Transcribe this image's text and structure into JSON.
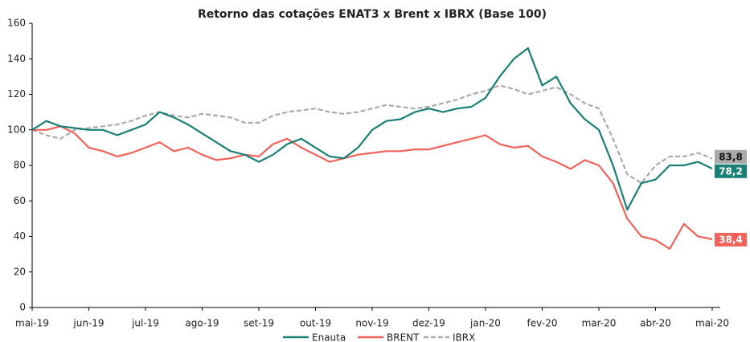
{
  "chart_data": {
    "type": "line",
    "title": "Retorno das cotações ENAT3 x Brent x IBRX (Base 100)",
    "categories": [
      "mai-19",
      null,
      null,
      null,
      "jun-19",
      null,
      null,
      null,
      "jul-19",
      null,
      null,
      null,
      "ago-19",
      null,
      null,
      null,
      "set-19",
      null,
      null,
      null,
      "out-19",
      null,
      null,
      null,
      "nov-19",
      null,
      null,
      null,
      "dez-19",
      null,
      null,
      null,
      "jan-20",
      null,
      null,
      null,
      "fev-20",
      null,
      null,
      null,
      "mar-20",
      null,
      null,
      null,
      "abr-20",
      null,
      null,
      null,
      "mai-20"
    ],
    "ylim": [
      0,
      160
    ],
    "yticks": [
      0,
      20,
      40,
      60,
      80,
      100,
      120,
      140,
      160
    ],
    "grid": false,
    "legend": "bottom",
    "series": [
      {
        "name": "Enauta",
        "color": "#1a7f74",
        "dash": false,
        "values": [
          100,
          105,
          102,
          101,
          100,
          100,
          97,
          100,
          103,
          110,
          107,
          103,
          98,
          93,
          88,
          86,
          82,
          86,
          92,
          95,
          90,
          85,
          84,
          90,
          100,
          105,
          106,
          110,
          112,
          110,
          112,
          113,
          118,
          130,
          140,
          146,
          125,
          130,
          115,
          106,
          100,
          80,
          55,
          70,
          72,
          80,
          80,
          82,
          78.2
        ],
        "value_labels": [
          null,
          null,
          null,
          null,
          null,
          null,
          null,
          null,
          null,
          null,
          null,
          null,
          null,
          null,
          null,
          null,
          null,
          null,
          null,
          null,
          null,
          null,
          null,
          null,
          null,
          null,
          null,
          null,
          null,
          null,
          null,
          null,
          null,
          null,
          null,
          null,
          null,
          null,
          null,
          null,
          null,
          null,
          null,
          null,
          null,
          null,
          null,
          null,
          "78,2"
        ]
      },
      {
        "name": "BRENT",
        "color": "#f0625a",
        "dash": false,
        "values": [
          100,
          100,
          102,
          98,
          90,
          88,
          85,
          87,
          90,
          93,
          88,
          90,
          86,
          83,
          84,
          86,
          85,
          92,
          95,
          90,
          86,
          82,
          84,
          86,
          87,
          88,
          88,
          89,
          89,
          91,
          93,
          95,
          97,
          92,
          90,
          91,
          85,
          82,
          78,
          83,
          80,
          70,
          50,
          40,
          38,
          33,
          47,
          40,
          38.4
        ],
        "value_labels": [
          null,
          null,
          null,
          null,
          null,
          null,
          null,
          null,
          null,
          null,
          null,
          null,
          null,
          null,
          null,
          null,
          null,
          null,
          null,
          null,
          null,
          null,
          null,
          null,
          null,
          null,
          null,
          null,
          null,
          null,
          null,
          null,
          null,
          null,
          null,
          null,
          null,
          null,
          null,
          null,
          null,
          null,
          null,
          null,
          null,
          null,
          null,
          null,
          "38,4"
        ]
      },
      {
        "name": "IBRX",
        "color": "#aaaaaa",
        "dash": true,
        "values": [
          100,
          97,
          95,
          100,
          101,
          102,
          103,
          105,
          108,
          110,
          108,
          107,
          109,
          108,
          107,
          104,
          104,
          108,
          110,
          111,
          112,
          110,
          109,
          110,
          112,
          114,
          113,
          112,
          113,
          115,
          117,
          120,
          122,
          125,
          123,
          120,
          122,
          124,
          120,
          115,
          112,
          95,
          75,
          70,
          80,
          85,
          85,
          87,
          83.8
        ],
        "value_labels": [
          null,
          null,
          null,
          null,
          null,
          null,
          null,
          null,
          null,
          null,
          null,
          null,
          null,
          null,
          null,
          null,
          null,
          null,
          null,
          null,
          null,
          null,
          null,
          null,
          null,
          null,
          null,
          null,
          null,
          null,
          null,
          null,
          null,
          null,
          null,
          null,
          null,
          null,
          null,
          null,
          null,
          null,
          null,
          null,
          null,
          null,
          null,
          null,
          "83,8"
        ]
      }
    ]
  }
}
